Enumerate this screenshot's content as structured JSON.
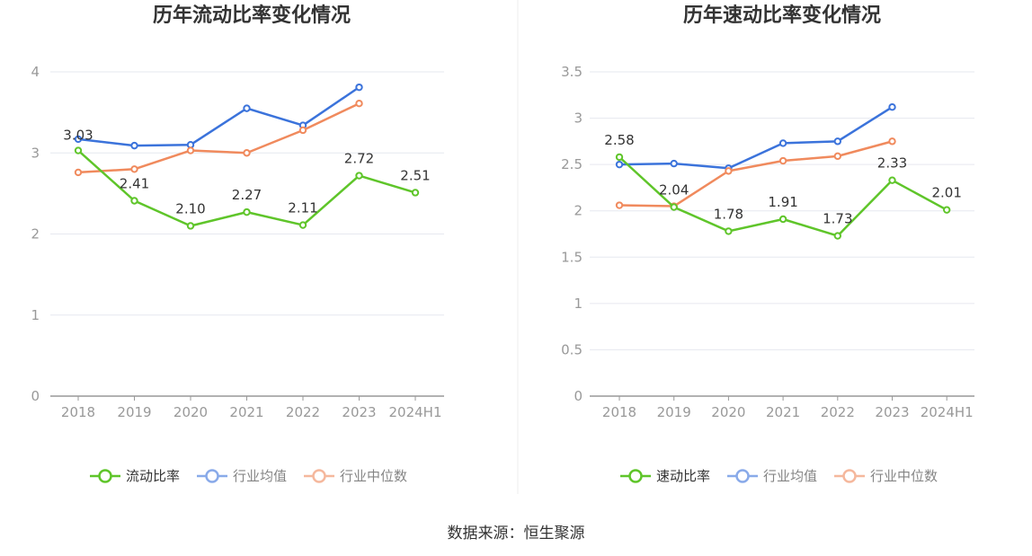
{
  "source_text": "数据来源：恒生聚源",
  "colors": {
    "company": "#5fc52a",
    "industry_avg": "#3b73db",
    "industry_median": "#f08a5d"
  },
  "chart_data": [
    {
      "type": "line",
      "title": "历年流动比率变化情况",
      "categories": [
        "2018",
        "2019",
        "2020",
        "2021",
        "2022",
        "2023",
        "2024H1"
      ],
      "ylim": [
        0,
        4
      ],
      "yticks": [
        "0",
        "1",
        "2",
        "3",
        "4"
      ],
      "grid": true,
      "legend_position": "bottom",
      "series": [
        {
          "name": "流动比率",
          "key": "company",
          "values": [
            3.03,
            2.41,
            2.1,
            2.27,
            2.11,
            2.72,
            2.51
          ],
          "labels": [
            "3.03",
            "2.41",
            "2.10",
            "2.27",
            "2.11",
            "2.72",
            "2.51"
          ]
        },
        {
          "name": "行业均值",
          "key": "industry_avg",
          "values": [
            3.17,
            3.09,
            3.1,
            3.55,
            3.34,
            3.81,
            null
          ]
        },
        {
          "name": "行业中位数",
          "key": "industry_median",
          "values": [
            2.76,
            2.8,
            3.03,
            3.0,
            3.28,
            3.61,
            null
          ]
        }
      ]
    },
    {
      "type": "line",
      "title": "历年速动比率变化情况",
      "categories": [
        "2018",
        "2019",
        "2020",
        "2021",
        "2022",
        "2023",
        "2024H1"
      ],
      "ylim": [
        0,
        3.5
      ],
      "yticks": [
        "0",
        "0.5",
        "1",
        "1.5",
        "2",
        "2.5",
        "3",
        "3.5"
      ],
      "grid": true,
      "legend_position": "bottom",
      "series": [
        {
          "name": "速动比率",
          "key": "company",
          "values": [
            2.58,
            2.04,
            1.78,
            1.91,
            1.73,
            2.33,
            2.01
          ],
          "labels": [
            "2.58",
            "2.04",
            "1.78",
            "1.91",
            "1.73",
            "2.33",
            "2.01"
          ]
        },
        {
          "name": "行业均值",
          "key": "industry_avg",
          "values": [
            2.5,
            2.51,
            2.46,
            2.73,
            2.75,
            3.12,
            null
          ]
        },
        {
          "name": "行业中位数",
          "key": "industry_median",
          "values": [
            2.06,
            2.05,
            2.43,
            2.54,
            2.59,
            2.75,
            null
          ]
        }
      ]
    }
  ]
}
